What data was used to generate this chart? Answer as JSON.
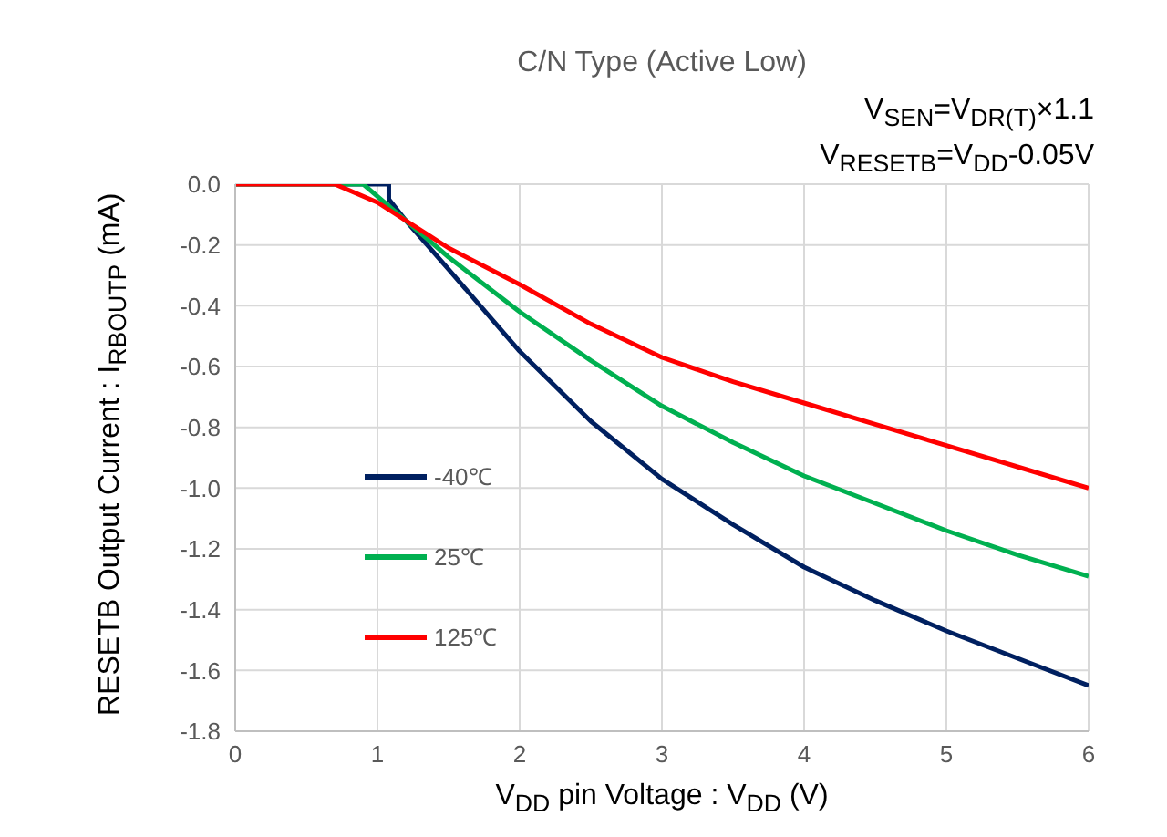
{
  "chart_data": {
    "type": "line",
    "title": "C/N Type (Active Low)",
    "annotations": [
      "V$_{SEN}$=V$_{DR(T)}$×1.1",
      "V$_{RESETB}$=V$_{DD}$-0.05V"
    ],
    "xlabel": "V$_{DD}$ pin Voltage : V$_{DD}$ (V)",
    "ylabel": "RESETB Output Current : I$_{RBOUTP}$ (mA)",
    "xlim": [
      0,
      6
    ],
    "xticks": [
      0,
      1,
      2,
      3,
      4,
      5,
      6
    ],
    "ylim": [
      -1.8,
      0
    ],
    "yticks": [
      {
        "value": 0,
        "label": "0.0"
      },
      -0.2,
      -0.4,
      -0.6,
      -0.8,
      {
        "value": -1,
        "label": "-1.0"
      },
      -1.2,
      -1.4,
      -1.6,
      -1.8
    ],
    "grid": true,
    "legend": "left",
    "marker": "none",
    "line_style": "solid",
    "series": [
      {
        "name": "-40℃",
        "color": "#002060",
        "x": [
          0,
          1.08,
          1.08,
          1.2,
          1.5,
          2,
          2.5,
          3,
          3.5,
          4,
          4.5,
          5,
          5.5,
          6
        ],
        "values": [
          0,
          0,
          -0.05,
          -0.12,
          -0.28,
          -0.55,
          -0.78,
          -0.97,
          -1.12,
          -1.26,
          -1.37,
          -1.47,
          -1.56,
          -1.65
        ]
      },
      {
        "name": "25℃",
        "color": "#00b050",
        "x": [
          0,
          0.9,
          1,
          1.2,
          1.5,
          2,
          2.5,
          3,
          3.5,
          4,
          4.5,
          5,
          5.5,
          6
        ],
        "values": [
          0,
          0,
          -0.04,
          -0.12,
          -0.24,
          -0.42,
          -0.58,
          -0.73,
          -0.85,
          -0.96,
          -1.05,
          -1.14,
          -1.22,
          -1.29
        ]
      },
      {
        "name": "125℃",
        "color": "#ff0000",
        "x": [
          0,
          0.7,
          1,
          1.2,
          1.5,
          2,
          2.5,
          3,
          3.5,
          4,
          4.5,
          5,
          5.5,
          6
        ],
        "values": [
          0,
          0,
          -0.06,
          -0.12,
          -0.21,
          -0.33,
          -0.46,
          -0.57,
          -0.65,
          -0.72,
          -0.79,
          -0.86,
          -0.93,
          -1.0
        ]
      }
    ]
  }
}
